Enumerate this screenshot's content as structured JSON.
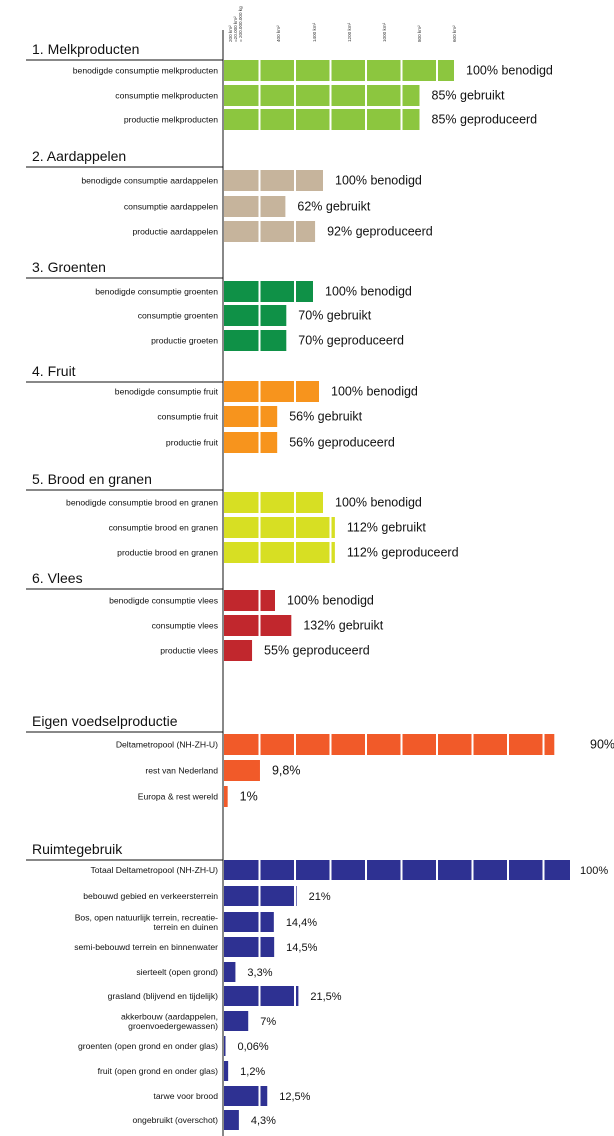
{
  "axis_ticks": [
    [
      "200 km²",
      "=20.000 km²",
      "= 200.000.000 kg"
    ],
    [
      "400 km²"
    ],
    [
      "1400 km²"
    ],
    [
      "1200 km²"
    ],
    [
      "1000 km²"
    ],
    [
      "800 km²"
    ],
    [
      "600 km²"
    ]
  ],
  "chart_data": [
    {
      "type": "bar",
      "orientation": "horizontal",
      "title": "1. Melkproducten",
      "color": "#8cc63f",
      "categories": [
        "benodigde consumptie melkproducten",
        "consumptie melkproducten",
        "productie melkproducten"
      ],
      "values": [
        100,
        85,
        85
      ],
      "value_labels": [
        "100% benodigd",
        "85% gebruikt",
        "85% geproduceerd"
      ]
    },
    {
      "type": "bar",
      "orientation": "horizontal",
      "title": "2. Aardappelen",
      "color": "#c6b49c",
      "categories": [
        "benodigde consumptie aardappelen",
        "consumptie aardappelen",
        "productie aardappelen"
      ],
      "values": [
        100,
        62,
        92
      ],
      "value_labels": [
        "100% benodigd",
        "62% gebruikt",
        "92% geproduceerd"
      ]
    },
    {
      "type": "bar",
      "orientation": "horizontal",
      "title": "3. Groenten",
      "color": "#0f9147",
      "categories": [
        "benodigde consumptie groenten",
        "consumptie groenten",
        "productie groeten"
      ],
      "values": [
        100,
        70,
        70
      ],
      "value_labels": [
        "100% benodigd",
        "70% gebruikt",
        "70% geproduceerd"
      ]
    },
    {
      "type": "bar",
      "orientation": "horizontal",
      "title": "4. Fruit",
      "color": "#f7941d",
      "categories": [
        "benodigde consumptie fruit",
        "consumptie fruit",
        "productie fruit"
      ],
      "values": [
        100,
        56,
        56
      ],
      "value_labels": [
        "100% benodigd",
        "56% gebruikt",
        "56% geproduceerd"
      ]
    },
    {
      "type": "bar",
      "orientation": "horizontal",
      "title": "5. Brood en granen",
      "color": "#d7df23",
      "categories": [
        "benodigde consumptie brood en granen",
        "consumptie brood en granen",
        "productie  brood en granen"
      ],
      "values": [
        100,
        112,
        112
      ],
      "value_labels": [
        "100% benodigd",
        "112% gebruikt",
        "112% geproduceerd"
      ]
    },
    {
      "type": "bar",
      "orientation": "horizontal",
      "title": "6. Vlees",
      "color": "#c1272d",
      "categories": [
        "benodigde consumptie vlees",
        "consumptie vlees",
        "productie vlees"
      ],
      "values": [
        100,
        132,
        55
      ],
      "value_labels": [
        "100% benodigd",
        "132% gebruikt",
        "55% geproduceerd"
      ]
    },
    {
      "type": "bar",
      "orientation": "horizontal",
      "title": "Eigen voedselproductie",
      "color": "#f15a29",
      "categories": [
        "Deltametropool (NH-ZH-U)",
        "rest van Nederland",
        "Europa & rest wereld"
      ],
      "values": [
        90,
        9.8,
        1
      ],
      "value_labels": [
        "90%",
        "9,8%",
        "1%"
      ]
    },
    {
      "type": "bar",
      "orientation": "horizontal",
      "title": "Ruimtegebruik",
      "color": "#2e3192",
      "categories": [
        "Totaal Deltametropool (NH-ZH-U)",
        "bebouwd gebied en verkeersterrein",
        [
          "Bos, open natuurlijk terrein, recreatie-",
          "terrein en duinen"
        ],
        "semi-bebouwd terrein en binnenwater",
        "sierteelt (open grond)",
        "grasland (blijvend en tijdelijk)",
        [
          "akkerbouw (aardappelen,",
          "groenvoedergewassen)"
        ],
        "groenten (open grond en onder glas)",
        "fruit (open grond en onder glas)",
        "tarwe voor brood",
        "ongebruikt (overschot)"
      ],
      "values": [
        100,
        21,
        14.4,
        14.5,
        3.3,
        21.5,
        7,
        0.06,
        1.2,
        12.5,
        4.3
      ],
      "value_labels": [
        "100%",
        "21%",
        "14,4%",
        "14,5%",
        "3,3%",
        "21,5%",
        "7%",
        "0,06%",
        "1,2%",
        "12,5%",
        "4,3%"
      ]
    }
  ]
}
